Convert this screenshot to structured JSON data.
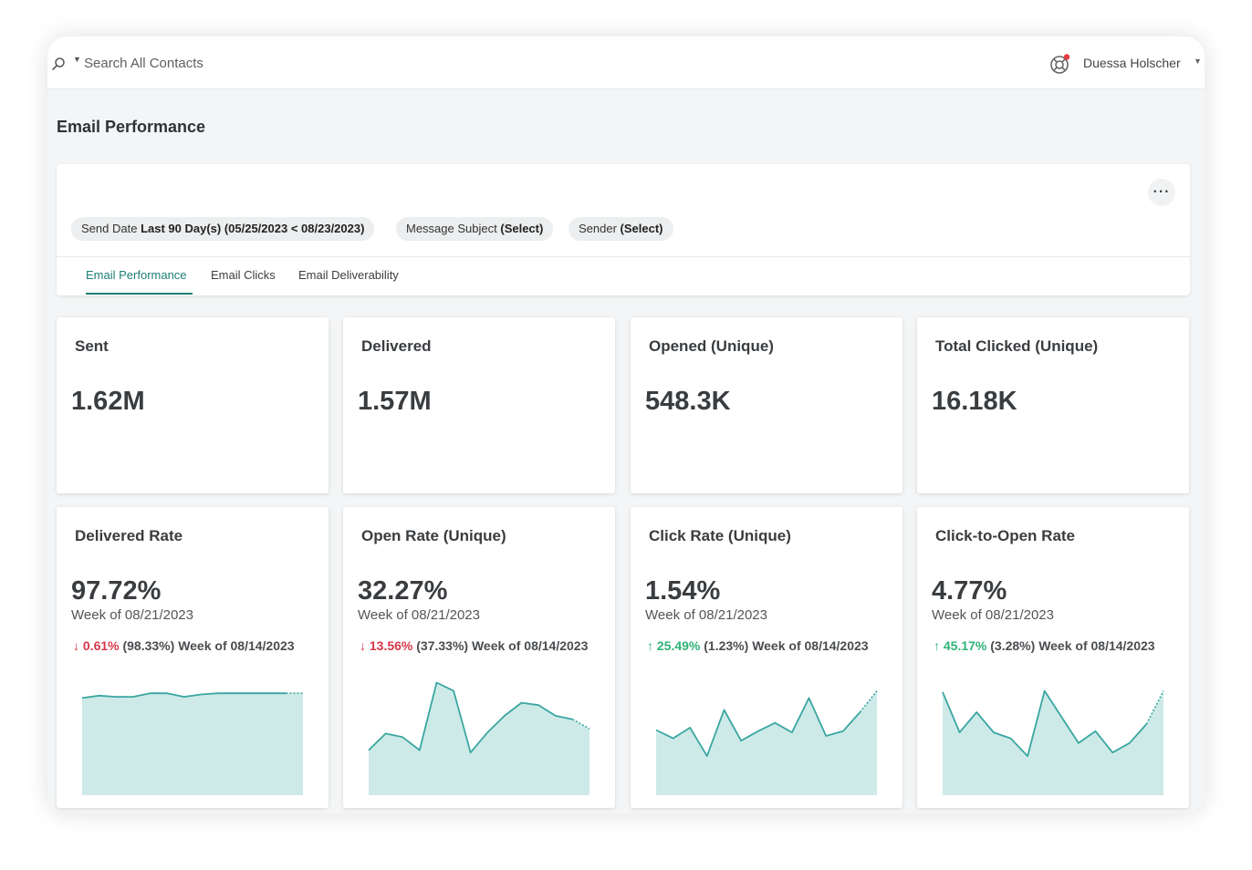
{
  "header": {
    "search_placeholder": "Search All Contacts",
    "user_name": "Duessa Holscher"
  },
  "page_title": "Email Performance",
  "filters": [
    {
      "label": "Send Date",
      "value": "Last 90 Day(s) (05/25/2023 < 08/23/2023)"
    },
    {
      "label": "Message Subject",
      "value": "(Select)"
    },
    {
      "label": "Sender",
      "value": "(Select)"
    }
  ],
  "more_label": "···",
  "tabs": [
    {
      "label": "Email Performance",
      "active": true
    },
    {
      "label": "Email Clicks",
      "active": false
    },
    {
      "label": "Email Deliverability",
      "active": false
    }
  ],
  "colors": {
    "accent": "#1b7f74",
    "spark_line": "#3aa6a1",
    "spark_fill": "#cdeae8",
    "down": "#d6384a",
    "up": "#2fb377"
  },
  "kpis": [
    {
      "title": "Sent",
      "value": "1.62M"
    },
    {
      "title": "Delivered",
      "value": "1.57M"
    },
    {
      "title": "Opened (Unique)",
      "value": "548.3K"
    },
    {
      "title": "Total Clicked (Unique)",
      "value": "16.18K"
    }
  ],
  "rates": [
    {
      "title": "Delivered Rate",
      "value": "97.72%",
      "week": "Week of 08/21/2023",
      "direction": "down",
      "arrow": "↓",
      "change": "0.61%",
      "previous": "(98.33%)",
      "previous_week": "Week of 08/14/2023",
      "trend": [
        0.82,
        0.84,
        0.83,
        0.83,
        0.86,
        0.86,
        0.83,
        0.85,
        0.86,
        0.86,
        0.86,
        0.86,
        0.86,
        0.86
      ]
    },
    {
      "title": "Open Rate (Unique)",
      "value": "32.27%",
      "week": "Week of 08/21/2023",
      "direction": "down",
      "arrow": "↓",
      "change": "13.56%",
      "previous": "(37.33%)",
      "previous_week": "Week of 08/14/2023",
      "trend": [
        0.38,
        0.52,
        0.49,
        0.38,
        0.95,
        0.88,
        0.36,
        0.53,
        0.67,
        0.78,
        0.76,
        0.67,
        0.64,
        0.56
      ]
    },
    {
      "title": "Click Rate (Unique)",
      "value": "1.54%",
      "week": "Week of 08/21/2023",
      "direction": "up",
      "arrow": "↑",
      "change": "25.49%",
      "previous": "(1.23%)",
      "previous_week": "Week of 08/14/2023",
      "trend": [
        0.55,
        0.48,
        0.57,
        0.33,
        0.72,
        0.46,
        0.54,
        0.61,
        0.53,
        0.82,
        0.5,
        0.54,
        0.7,
        0.88
      ]
    },
    {
      "title": "Click-to-Open Rate",
      "value": "4.77%",
      "week": "Week of 08/21/2023",
      "direction": "up",
      "arrow": "↑",
      "change": "45.17%",
      "previous": "(3.28%)",
      "previous_week": "Week of 08/14/2023",
      "trend": [
        0.87,
        0.53,
        0.7,
        0.53,
        0.48,
        0.33,
        0.88,
        0.66,
        0.44,
        0.54,
        0.36,
        0.44,
        0.6,
        0.88
      ]
    }
  ]
}
